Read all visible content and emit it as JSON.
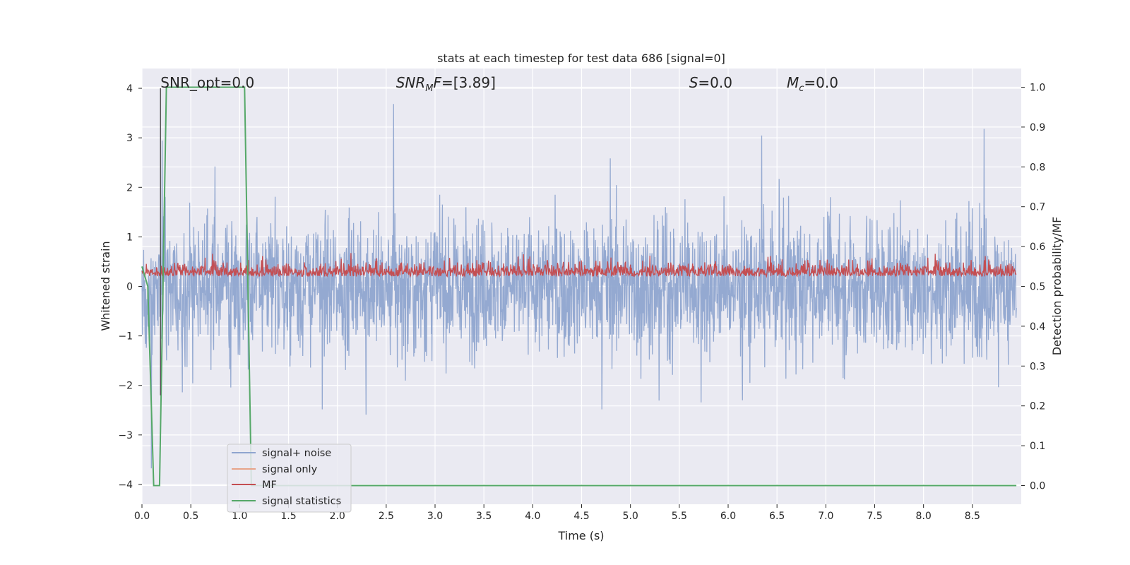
{
  "chart_data": {
    "type": "line",
    "title": "stats at each timestep for test data 686 [signal=0]",
    "xlabel": "Time (s)",
    "ylabel": "Whitened strain",
    "y2label": "Detection probability/MF",
    "xlim": [
      0.0,
      9.0
    ],
    "ylim": [
      -4.4,
      4.4
    ],
    "y2lim": [
      -0.047,
      1.047
    ],
    "xticks": [
      "0.0",
      "0.5",
      "1.0",
      "1.5",
      "2.0",
      "2.5",
      "3.0",
      "3.5",
      "4.0",
      "4.5",
      "5.0",
      "5.5",
      "6.0",
      "6.5",
      "7.0",
      "7.5",
      "8.0",
      "8.5"
    ],
    "yticks": [
      "4",
      "3",
      "2",
      "1",
      "0",
      "−1",
      "−2",
      "−3",
      "−4"
    ],
    "y2ticks": [
      "1.0",
      "0.9",
      "0.8",
      "0.7",
      "0.6",
      "0.5",
      "0.4",
      "0.3",
      "0.2",
      "0.1",
      "0.0"
    ],
    "grid": true,
    "legend_position": "lower-left",
    "annotations": [
      {
        "id": "snr-opt",
        "text": "SNR_opt=0.0",
        "x": 0.19
      },
      {
        "id": "snr-mf",
        "text": "=[3.89]",
        "x": 2.6
      },
      {
        "id": "s",
        "text": "=0.0",
        "x": 5.6
      },
      {
        "id": "mc",
        "text": "=0.0",
        "x": 6.6
      }
    ],
    "annotation_symbols": {
      "snr_mf": "SNR",
      "snr_mf_sub": "M",
      "snr_mf_tail": "F",
      "s": "S",
      "mc": "M",
      "mc_sub": "c"
    },
    "marker_line": {
      "x": 0.19,
      "y_top": 4.0,
      "y_bottom": -2.2
    },
    "series": [
      {
        "name": "signal+ noise",
        "color": "#8fa5cf",
        "axis": "left",
        "noise_min": -3.9,
        "noise_max": 4.0
      },
      {
        "name": "signal only",
        "color": "#e8a48a",
        "axis": "left"
      },
      {
        "name": "MF",
        "color": "#c44e52",
        "axis": "right",
        "base": 0.5,
        "range": [
          0.5,
          0.62
        ]
      },
      {
        "name": "signal statistics",
        "color": "#55a868",
        "axis": "right",
        "x": [
          0.0,
          0.06,
          0.12,
          0.18,
          0.25,
          1.05,
          1.12,
          8.95
        ],
        "y": [
          0.55,
          0.5,
          0.0,
          0.0,
          1.0,
          1.0,
          0.0,
          0.0
        ]
      }
    ]
  }
}
